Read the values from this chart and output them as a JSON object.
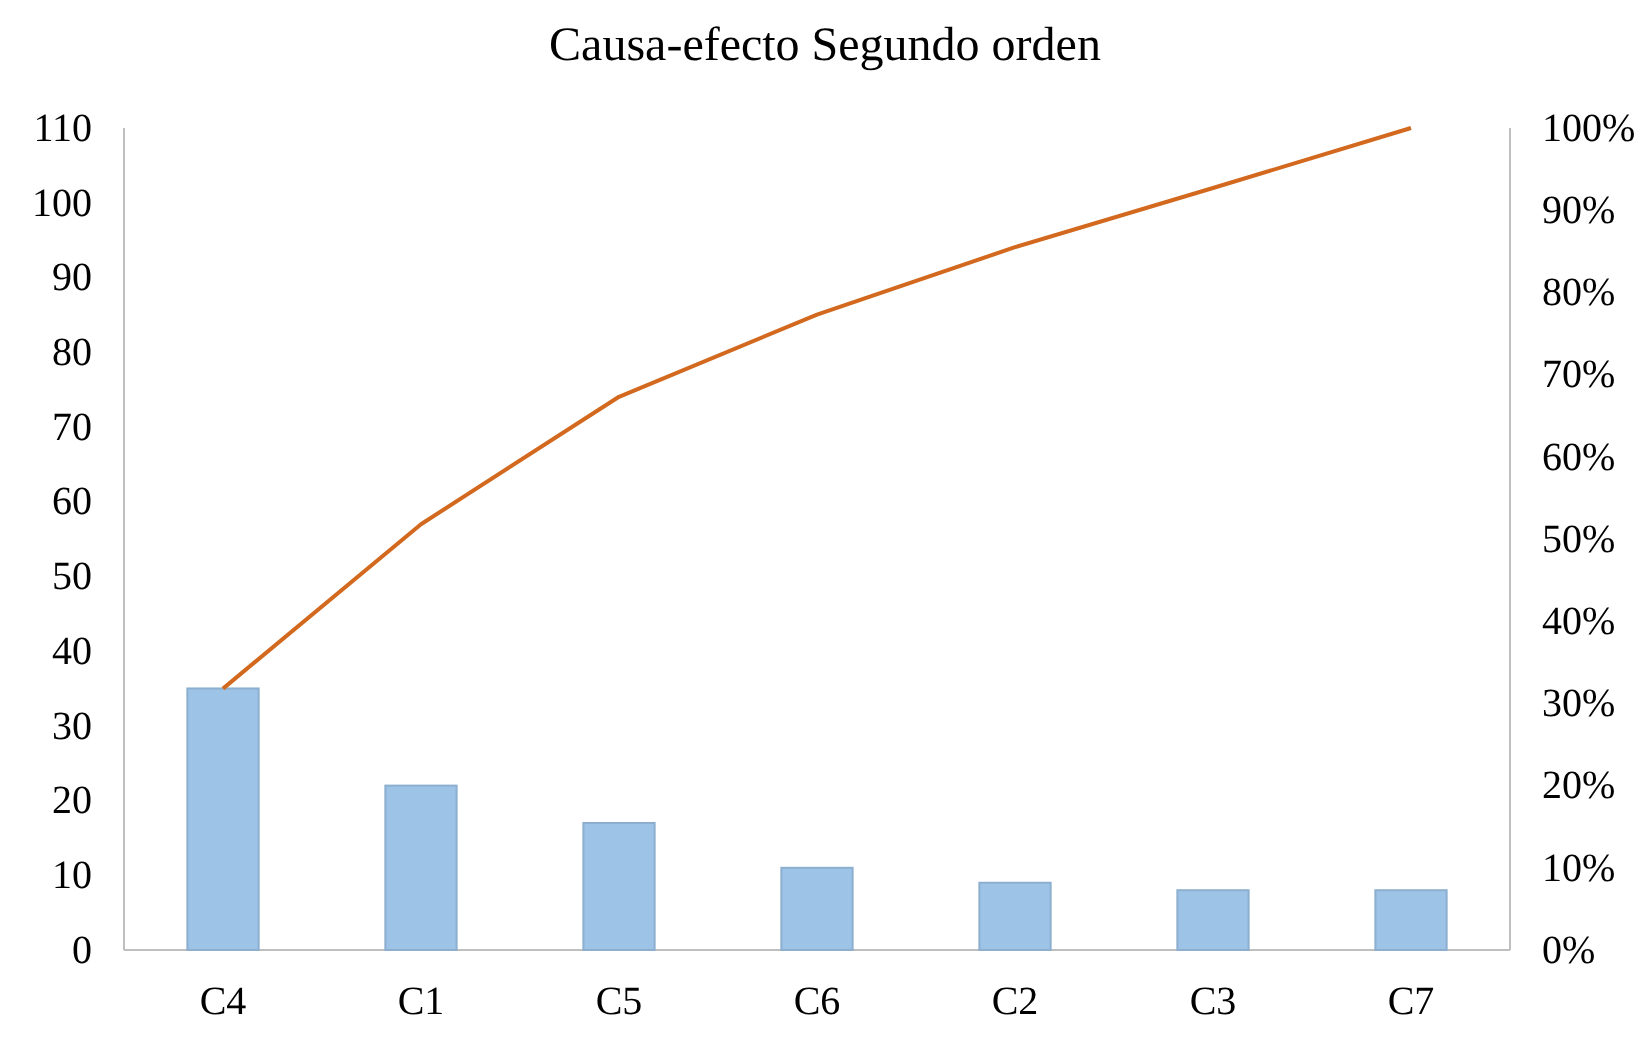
{
  "chart_data": {
    "type": "bar",
    "title": "Causa-efecto Segundo orden",
    "categories": [
      "C4",
      "C1",
      "C5",
      "C6",
      "C2",
      "C3",
      "C7"
    ],
    "series": [
      {
        "color": "#9dc3e6",
        "values": [
          35,
          22,
          17,
          11,
          9,
          8,
          8
        ]
      },
      {
        "type": "line",
        "axis": "y2",
        "color": "#d2691e",
        "values": [
          31.8,
          51.8,
          67.3,
          77.3,
          85.5,
          92.7,
          100
        ]
      }
    ],
    "ylim": [
      0,
      110
    ],
    "yticks": [
      0,
      10,
      20,
      30,
      40,
      50,
      60,
      70,
      80,
      90,
      100,
      110
    ],
    "y2lim": [
      0,
      100
    ],
    "y2ticks": [
      {
        "value": 0,
        "label": "0%"
      },
      {
        "value": 10,
        "label": "10%"
      },
      {
        "value": 20,
        "label": "20%"
      },
      {
        "value": 30,
        "label": "30%"
      },
      {
        "value": 40,
        "label": "40%"
      },
      {
        "value": 50,
        "label": "50%"
      },
      {
        "value": 60,
        "label": "60%"
      },
      {
        "value": 70,
        "label": "70%"
      },
      {
        "value": 80,
        "label": "80%"
      },
      {
        "value": 90,
        "label": "90%"
      },
      {
        "value": 100,
        "label": "100%"
      }
    ],
    "grid": false,
    "marker": "none",
    "line_style": "solid"
  }
}
